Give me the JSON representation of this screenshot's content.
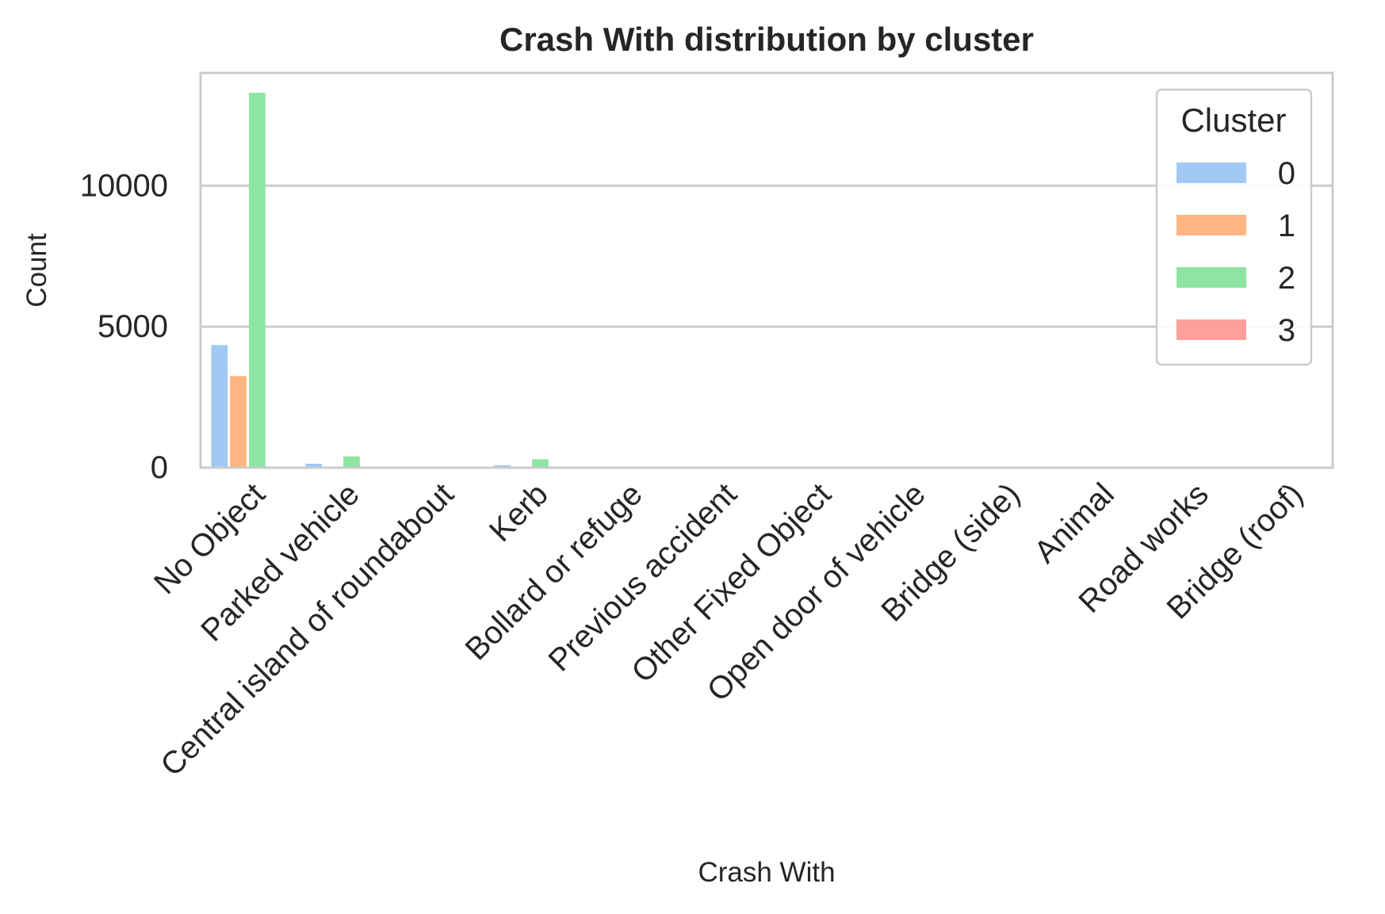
{
  "chart_data": {
    "type": "bar",
    "title": "Crash With distribution by cluster",
    "xlabel": "Crash With",
    "ylabel": "Count",
    "ylim": [
      0,
      14000
    ],
    "yticks": [
      0,
      5000,
      10000
    ],
    "grid": "y",
    "legend": {
      "title": "Cluster",
      "placement": "top-right"
    },
    "categories": [
      "No Object",
      "Parked vehicle",
      "Central island of roundabout",
      "Kerb",
      "Bollard or refuge",
      "Previous accident",
      "Other Fixed Object",
      "Open door of vehicle",
      "Bridge (side)",
      "Animal",
      "Road works",
      "Bridge (roof)"
    ],
    "series": [
      {
        "name": "0",
        "color": "#a1c9f4",
        "values": [
          4350,
          140,
          10,
          90,
          5,
          5,
          10,
          3,
          1,
          1,
          1,
          1
        ]
      },
      {
        "name": "1",
        "color": "#ffb482",
        "values": [
          3250,
          40,
          5,
          25,
          3,
          2,
          5,
          2,
          1,
          1,
          1,
          0
        ]
      },
      {
        "name": "2",
        "color": "#8de5a1",
        "values": [
          13300,
          400,
          20,
          300,
          8,
          6,
          15,
          5,
          2,
          2,
          2,
          1
        ]
      },
      {
        "name": "3",
        "color": "#ff9f9b",
        "values": [
          10,
          2,
          1,
          2,
          1,
          0,
          1,
          0,
          0,
          0,
          0,
          0
        ]
      }
    ]
  }
}
